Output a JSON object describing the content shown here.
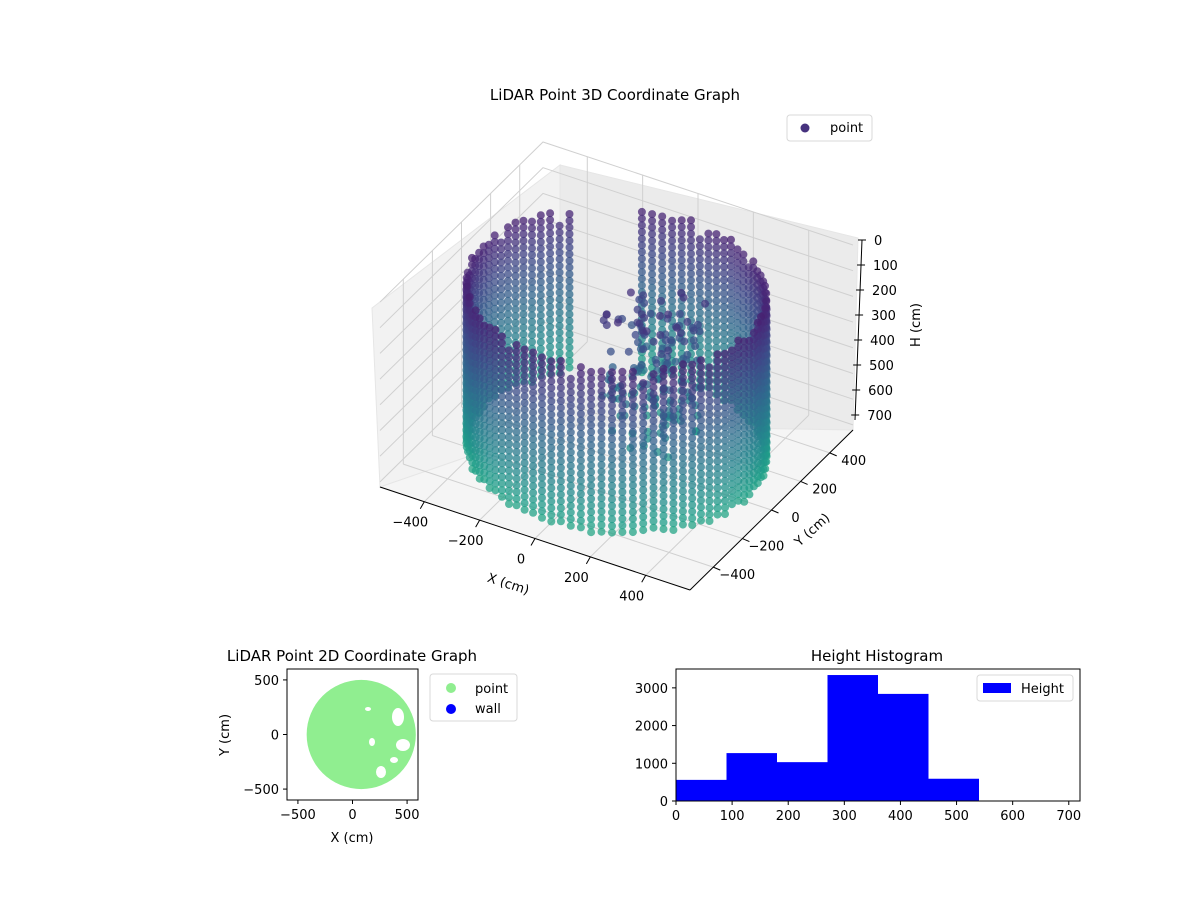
{
  "chart_data": [
    {
      "type": "scatter",
      "projection": "3d",
      "title": "LiDAR Point 3D Coordinate Graph",
      "xlabel": "X (cm)",
      "ylabel": "Y (cm)",
      "zlabel": "H (cm)",
      "x_ticks": [
        -400,
        -200,
        0,
        200,
        400
      ],
      "y_ticks": [
        -400,
        -200,
        0,
        200,
        400
      ],
      "z_ticks": [
        0,
        100,
        200,
        300,
        400,
        500,
        600,
        700
      ],
      "x_tick_labels": [
        "−400",
        "−200",
        "0",
        "200",
        "400"
      ],
      "y_tick_labels": [
        "−400",
        "−200",
        "0",
        "200",
        "400"
      ],
      "z_tick_labels": [
        "0",
        "100",
        "200",
        "300",
        "400",
        "500",
        "600",
        "700"
      ],
      "xlim": [
        -560,
        560
      ],
      "ylim": [
        -560,
        560
      ],
      "zlim": [
        0,
        720
      ],
      "z_inverted": true,
      "grid": true,
      "colormap": "viridis",
      "legend": {
        "placement": "top-right",
        "entries": [
          {
            "label": "point",
            "color": "#46327e"
          }
        ]
      },
      "structure": {
        "description_shape": "cylindrical wall of points",
        "wall_radius": 480,
        "wall_height_range": [
          50,
          700
        ]
      }
    },
    {
      "type": "scatter",
      "title": "LiDAR Point 2D Coordinate Graph",
      "xlabel": "X (cm)",
      "ylabel": "Y (cm)",
      "xlim": [
        -600,
        600
      ],
      "ylim": [
        -600,
        600
      ],
      "x_ticks": [
        -500,
        0,
        500
      ],
      "y_ticks": [
        -500,
        0,
        500
      ],
      "x_tick_labels": [
        "−500",
        "0",
        "500"
      ],
      "y_tick_labels": [
        "−500",
        "0",
        "500"
      ],
      "grid": false,
      "legend": {
        "placement": "outside-right",
        "entries": [
          {
            "label": "point",
            "color": "#90ee90"
          },
          {
            "label": "wall",
            "color": "#0000ff"
          }
        ]
      },
      "series": [
        {
          "name": "point",
          "color": "#90ee90",
          "region": {
            "center": [
              80,
              0
            ],
            "radius": 500
          }
        }
      ]
    },
    {
      "type": "bar",
      "title": "Height Histogram",
      "xlabel": "",
      "ylabel": "",
      "xlim": [
        0,
        720
      ],
      "ylim": [
        0,
        3500
      ],
      "x_ticks": [
        0,
        100,
        200,
        300,
        400,
        500,
        600,
        700
      ],
      "y_ticks": [
        0,
        1000,
        2000,
        3000
      ],
      "x_tick_labels": [
        "0",
        "100",
        "200",
        "300",
        "400",
        "500",
        "600",
        "700"
      ],
      "y_tick_labels": [
        "0",
        "1000",
        "2000",
        "3000"
      ],
      "legend": {
        "placement": "top-right",
        "entries": [
          {
            "label": "Height",
            "color": "#0000ff"
          }
        ]
      },
      "bin_edges": [
        0,
        90,
        180,
        270,
        360,
        450,
        540,
        630,
        720
      ],
      "values": [
        560,
        1270,
        1030,
        3340,
        2840,
        590,
        0,
        0
      ],
      "color": "#0000ff"
    }
  ]
}
